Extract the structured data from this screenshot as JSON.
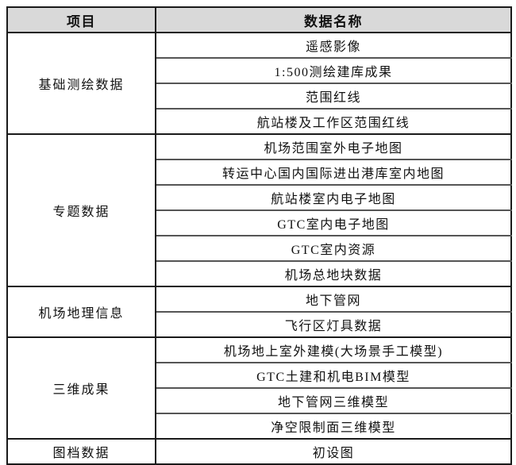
{
  "table": {
    "headers": [
      {
        "label": "项目"
      },
      {
        "label": "数据名称"
      }
    ],
    "sections": [
      {
        "category": "基础测绘数据",
        "items": [
          "遥感影像",
          "1:500测绘建库成果",
          "范围红线",
          "航站楼及工作区范围红线"
        ]
      },
      {
        "category": "专题数据",
        "items": [
          "机场范围室外电子地图",
          "转运中心国内国际进出港库室内地图",
          "航站楼室内电子地图",
          "GTC室内电子地图",
          "GTC室内资源",
          "机场总地块数据"
        ]
      },
      {
        "category": "机场地理信息",
        "items": [
          "地下管网",
          "飞行区灯具数据"
        ]
      },
      {
        "category": "三维成果",
        "items": [
          "机场地上室外建模(大场景手工模型)",
          "GTC土建和机电BIM模型",
          "地下管网三维模型",
          "净空限制面三维模型"
        ]
      },
      {
        "category": "图档数据",
        "items": [
          "初设图"
        ]
      }
    ],
    "colors": {
      "header_bg": "#d9d9d9",
      "border_strong": "#1a1a1a",
      "border_row": "#555555",
      "text": "#111111"
    }
  }
}
